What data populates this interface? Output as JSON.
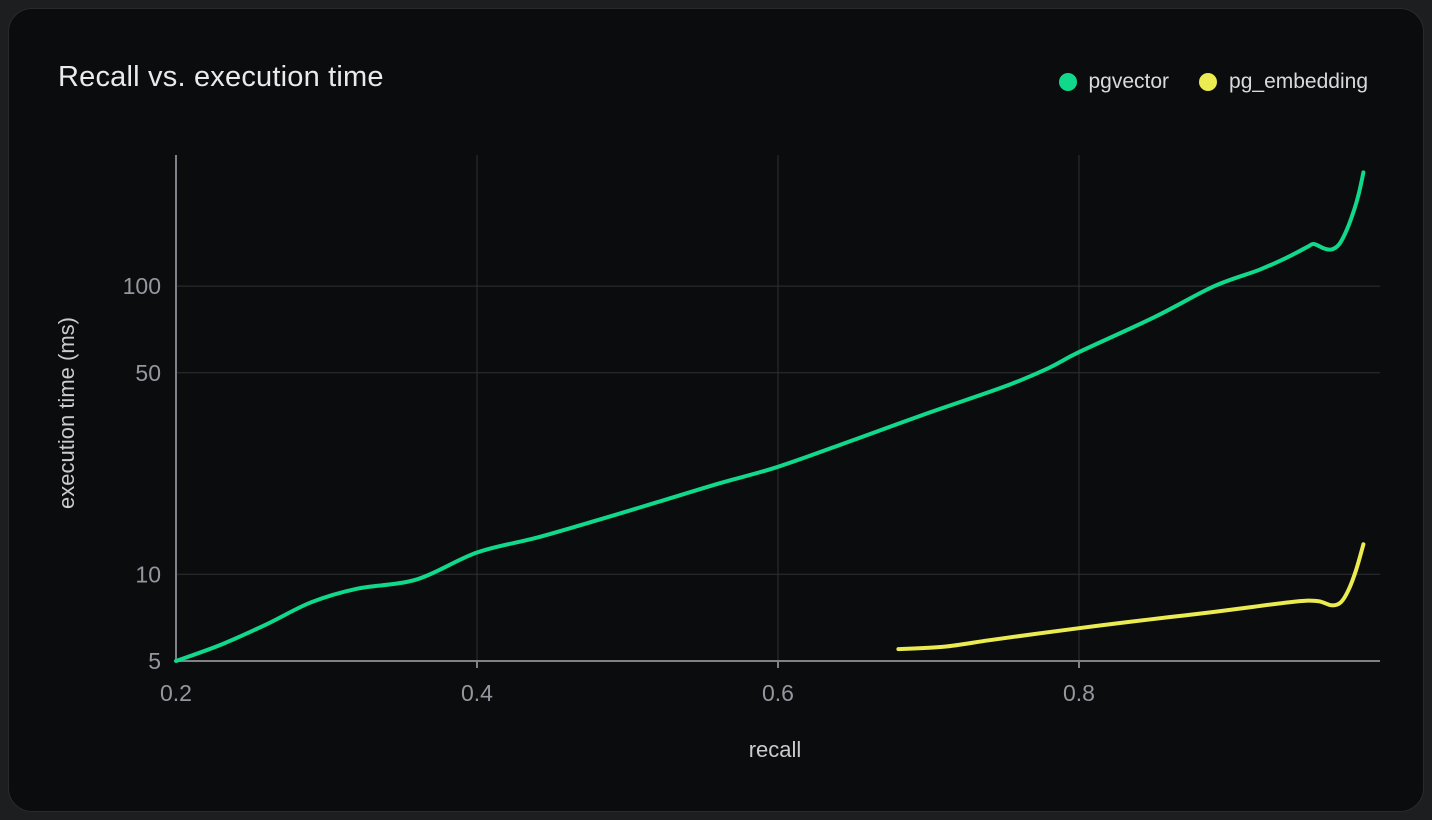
{
  "card": {
    "title": "Recall vs. execution time"
  },
  "legend": {
    "items": [
      {
        "label": "pgvector",
        "color": "#10d98c"
      },
      {
        "label": "pg_embedding",
        "color": "#ebeb52"
      }
    ]
  },
  "chart_data": {
    "type": "line",
    "title": "Recall vs. execution time",
    "xlabel": "recall",
    "ylabel": "execution time (ms)",
    "x_scale": "linear",
    "y_scale": "log",
    "xlim": [
      0.2,
      1.0
    ],
    "ylim": [
      5,
      285
    ],
    "x_ticks": [
      0.2,
      0.4,
      0.6,
      0.8
    ],
    "x_tick_labels": [
      "0.2",
      "0.4",
      "0.6",
      "0.8"
    ],
    "y_ticks": [
      5,
      10,
      50,
      100
    ],
    "y_tick_labels": [
      "5",
      "10",
      "50",
      "100"
    ],
    "grid": true,
    "legend_position": "top-right",
    "series": [
      {
        "name": "pgvector",
        "color": "#10d98c",
        "points": [
          [
            0.2,
            5.0
          ],
          [
            0.23,
            5.7
          ],
          [
            0.26,
            6.7
          ],
          [
            0.29,
            8.0
          ],
          [
            0.32,
            8.9
          ],
          [
            0.36,
            9.6
          ],
          [
            0.4,
            11.9
          ],
          [
            0.44,
            13.4
          ],
          [
            0.48,
            15.4
          ],
          [
            0.52,
            17.8
          ],
          [
            0.56,
            20.6
          ],
          [
            0.6,
            23.6
          ],
          [
            0.65,
            29.2
          ],
          [
            0.7,
            36.3
          ],
          [
            0.75,
            44.7
          ],
          [
            0.78,
            52.0
          ],
          [
            0.8,
            59.0
          ],
          [
            0.85,
            78.0
          ],
          [
            0.89,
            100.0
          ],
          [
            0.92,
            114.0
          ],
          [
            0.94,
            127.0
          ],
          [
            0.952,
            137.0
          ],
          [
            0.956,
            140.0
          ],
          [
            0.963,
            135.0
          ],
          [
            0.968,
            134.0
          ],
          [
            0.973,
            140.0
          ],
          [
            0.978,
            157.0
          ],
          [
            0.983,
            185.0
          ],
          [
            0.986,
            210.0
          ],
          [
            0.989,
            248.0
          ]
        ]
      },
      {
        "name": "pg_embedding",
        "color": "#ebeb52",
        "points": [
          [
            0.68,
            5.5
          ],
          [
            0.71,
            5.6
          ],
          [
            0.74,
            5.9
          ],
          [
            0.77,
            6.2
          ],
          [
            0.8,
            6.5
          ],
          [
            0.83,
            6.8
          ],
          [
            0.86,
            7.1
          ],
          [
            0.89,
            7.4
          ],
          [
            0.915,
            7.7
          ],
          [
            0.94,
            8.0
          ],
          [
            0.952,
            8.1
          ],
          [
            0.96,
            8.05
          ],
          [
            0.968,
            7.8
          ],
          [
            0.974,
            8.0
          ],
          [
            0.979,
            8.8
          ],
          [
            0.984,
            10.3
          ],
          [
            0.989,
            12.7
          ]
        ]
      }
    ]
  },
  "colors": {
    "page_bg": "#1d1e20",
    "card_bg": "#0b0c0d",
    "card_border": "#292a2d",
    "grid": "#2e3033",
    "axis": "#7e8187",
    "tick_text": "#94979e",
    "axis_title": "#c9cbcf",
    "title_text": "#e9eaec",
    "legend_text": "#d8dadd"
  }
}
